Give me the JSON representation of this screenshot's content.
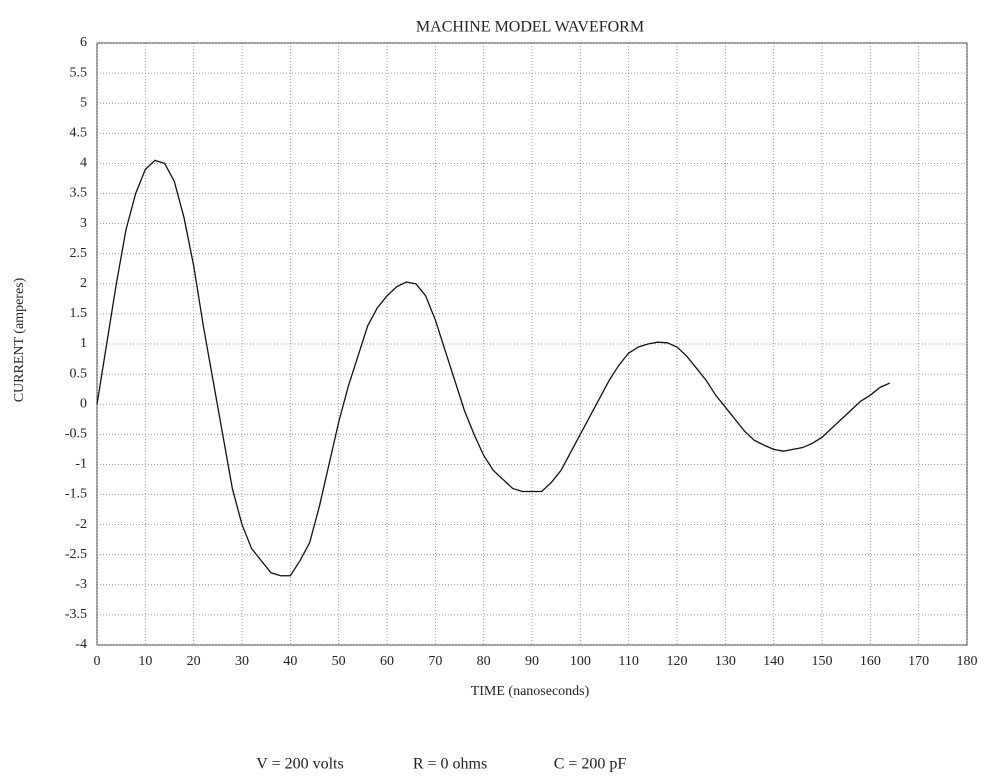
{
  "chart_data": {
    "type": "line",
    "title": "MACHINE MODEL WAVEFORM",
    "x_label": "TIME (nanoseconds)",
    "y_label": "CURRENT (amperes)",
    "annotations": [
      "V = 200 volts",
      "R = 0 ohms",
      "C = 200 pF"
    ],
    "color": "#111111",
    "grid": true,
    "x": [
      0,
      2,
      4,
      6,
      8,
      10,
      12,
      14,
      16,
      18,
      20,
      22,
      24,
      26,
      28,
      30,
      32,
      34,
      36,
      38,
      40,
      42,
      44,
      46,
      48,
      50,
      52,
      54,
      56,
      58,
      60,
      62,
      64,
      66,
      68,
      70,
      72,
      74,
      76,
      78,
      80,
      82,
      84,
      86,
      88,
      90,
      92,
      94,
      96,
      98,
      100,
      102,
      104,
      106,
      108,
      110,
      112,
      114,
      116,
      118,
      120,
      122,
      124,
      126,
      128,
      130,
      132,
      134,
      136,
      138,
      140,
      142,
      144,
      146,
      148,
      150,
      152,
      154,
      156,
      158,
      160,
      162,
      164
    ],
    "values": [
      0,
      1.0,
      2.0,
      2.9,
      3.5,
      3.9,
      4.05,
      4.0,
      3.7,
      3.1,
      2.3,
      1.3,
      0.4,
      -0.5,
      -1.4,
      -2.0,
      -2.4,
      -2.6,
      -2.8,
      -2.85,
      -2.85,
      -2.6,
      -2.3,
      -1.7,
      -1.0,
      -0.3,
      0.3,
      0.8,
      1.3,
      1.6,
      1.8,
      1.95,
      2.03,
      2.0,
      1.8,
      1.4,
      0.9,
      0.4,
      -0.1,
      -0.5,
      -0.85,
      -1.1,
      -1.25,
      -1.4,
      -1.45,
      -1.45,
      -1.45,
      -1.3,
      -1.1,
      -0.8,
      -0.5,
      -0.2,
      0.1,
      0.4,
      0.65,
      0.85,
      0.95,
      1.0,
      1.03,
      1.02,
      0.95,
      0.8,
      0.6,
      0.4,
      0.15,
      -0.05,
      -0.25,
      -0.45,
      -0.6,
      -0.68,
      -0.75,
      -0.78,
      -0.75,
      -0.72,
      -0.65,
      -0.55,
      -0.4,
      -0.25,
      -0.1,
      0.05,
      0.15,
      0.28,
      0.35
    ],
    "xlim": [
      0,
      180
    ],
    "xticks": [
      0,
      10,
      20,
      30,
      40,
      50,
      60,
      70,
      80,
      90,
      100,
      110,
      120,
      130,
      140,
      150,
      160,
      170,
      180
    ],
    "ylim": [
      -4,
      6
    ],
    "yticks": [
      6,
      5.5,
      5,
      4.5,
      4,
      3.5,
      3,
      2.5,
      2,
      1.5,
      1,
      0.5,
      0,
      -0.5,
      -1,
      -1.5,
      -2,
      -2.5,
      -3,
      -3.5,
      -4
    ]
  }
}
